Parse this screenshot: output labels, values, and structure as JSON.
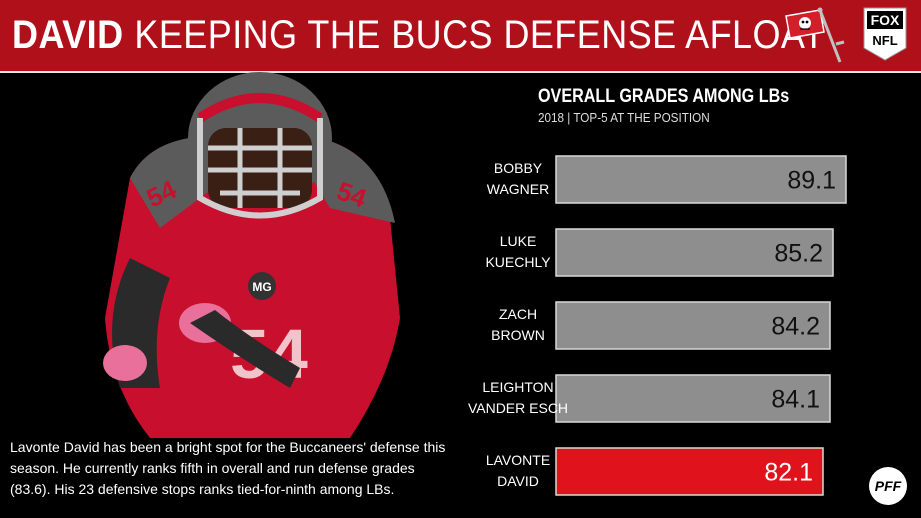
{
  "header": {
    "headline_strong": "DAVID",
    "headline_rest": "KEEPING THE BUCS DEFENSE AFLOAT",
    "fox_label_1": "FOX",
    "fox_label_2": "NFL"
  },
  "caption": {
    "lines": [
      "Lavonte David has been a bright spot for the Buccaneers' defense this",
      "season. He currently ranks fifth in overall and run defense grades",
      "(83.6). His 23 defensive stops ranks tied-for-ninth among LBs."
    ]
  },
  "colors": {
    "header_red": "#b0101a",
    "bar_gray": "#8e8e8e",
    "bar_highlight": "#e0121c",
    "bar_border": "#d9d9d9"
  },
  "chart_data": {
    "type": "bar",
    "orientation": "horizontal",
    "title": "OVERALL GRADES AMONG LBs",
    "subtitle": "2018 | TOP-5 AT THE POSITION",
    "categories": [
      [
        "BOBBY",
        "WAGNER"
      ],
      [
        "LUKE",
        "KUECHLY"
      ],
      [
        "ZACH",
        "BROWN"
      ],
      [
        "LEIGHTON",
        "VANDER ESCH"
      ],
      [
        "LAVONTE",
        "DAVID"
      ]
    ],
    "values": [
      89.1,
      85.2,
      84.2,
      84.1,
      82.1
    ],
    "value_labels": [
      "89.1",
      "85.2",
      "84.2",
      "84.1",
      "82.1"
    ],
    "highlight_index": 4,
    "xlim": [
      0,
      89.1
    ],
    "grid": false,
    "legend": "none"
  }
}
